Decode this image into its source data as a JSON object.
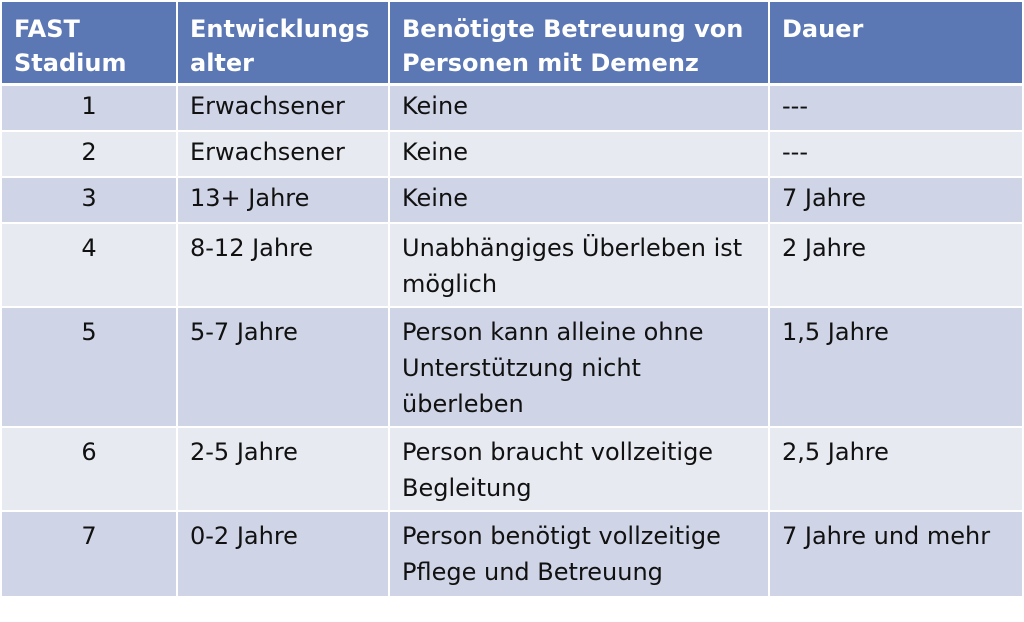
{
  "table": {
    "headers": [
      "FAST Stadium",
      "Entwicklungs alter",
      "Benötigte Betreuung von Personen mit Demenz",
      "Dauer"
    ],
    "rows": [
      {
        "stage": "1",
        "age": "Erwachsener",
        "care": "Keine",
        "duration": "---"
      },
      {
        "stage": "2",
        "age": "Erwachsener",
        "care": "Keine",
        "duration": "---"
      },
      {
        "stage": "3",
        "age": "13+ Jahre",
        "care": "Keine",
        "duration": "7 Jahre"
      },
      {
        "stage": "4",
        "age": "8-12 Jahre",
        "care": "Unabhängiges Überleben ist möglich",
        "duration": "2 Jahre"
      },
      {
        "stage": "5",
        "age": "5-7 Jahre",
        "care": "Person kann alleine ohne Unterstützung nicht überleben",
        "duration": "1,5 Jahre"
      },
      {
        "stage": "6",
        "age": "2-5 Jahre",
        "care": "Person braucht vollzeitige Begleitung",
        "duration": "2,5 Jahre"
      },
      {
        "stage": "7",
        "age": "0-2 Jahre",
        "care": "Person benötigt vollzeitige Pflege und Betreuung",
        "duration": "7 Jahre und mehr"
      }
    ]
  },
  "colors": {
    "header_bg": "#5b78b5",
    "row_odd_bg": "#cfd5e6",
    "row_even_bg": "#e8eaf1"
  }
}
